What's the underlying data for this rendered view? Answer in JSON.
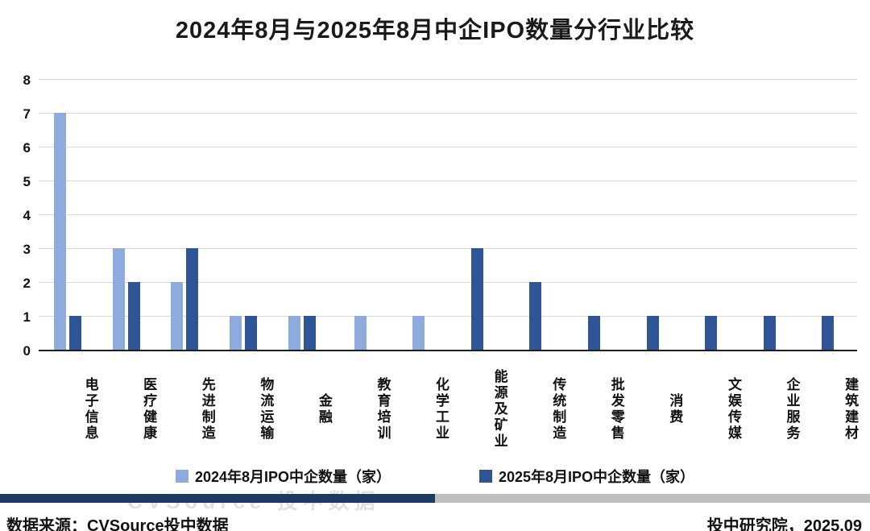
{
  "title": "2024年8月与2025年8月中企IPO数量分行业比较",
  "chart_data": {
    "type": "bar",
    "categories": [
      "电子信息",
      "医疗健康",
      "先进制造",
      "物流运输",
      "金融",
      "教育培训",
      "化学工业",
      "能源及矿业",
      "传统制造",
      "批发零售",
      "消费",
      "文娱传媒",
      "企业服务",
      "建筑建材"
    ],
    "series": [
      {
        "name": "2024年8月IPO中企数量（家）",
        "color": "#8FAADC",
        "values": [
          7,
          3,
          2,
          1,
          1,
          1,
          1,
          0,
          0,
          0,
          0,
          0,
          0,
          0
        ]
      },
      {
        "name": "2025年8月IPO中企数量（家）",
        "color": "#2F5597",
        "values": [
          1,
          2,
          3,
          1,
          1,
          0,
          0,
          3,
          2,
          1,
          1,
          1,
          1,
          1
        ]
      }
    ],
    "title": "2024年8月与2025年8月中企IPO数量分行业比较",
    "xlabel": "",
    "ylabel": "",
    "ylim": [
      0,
      8
    ],
    "yticks": [
      0,
      1,
      2,
      3,
      4,
      5,
      6,
      7,
      8
    ],
    "grid": true,
    "legend_position": "bottom"
  },
  "watermark": "CVSource 投中数据",
  "divider": {
    "left_color": "#1F3864",
    "right_color": "#BFBFBF"
  },
  "footer": {
    "source": "数据来源：CVSource投中数据",
    "publisher": "投中研究院，2025.09"
  }
}
